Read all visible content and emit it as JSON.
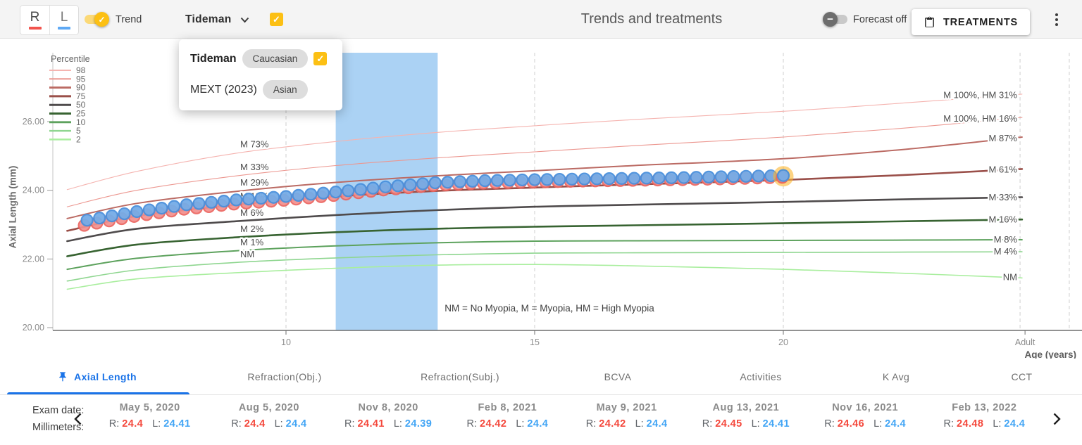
{
  "header": {
    "eye_toggle": {
      "right_label": "R",
      "left_label": "L"
    },
    "trend_toggle": {
      "label": "Trend",
      "on": true
    },
    "model_dropdown": {
      "label": "Tideman",
      "checkbox_checked": true
    },
    "title": "Trends and treatments",
    "forecast_toggle": {
      "label": "Forecast off",
      "on": false
    },
    "treatments_button_label": "TREATMENTS"
  },
  "icons": {
    "treatments_button": "clipboard-icon",
    "menu": "kebab-icon",
    "model_dropdown": "chevron-down-icon",
    "trend_thumb": "check-icon",
    "forecast_thumb": "minus-icon",
    "active_tab": "pin-icon",
    "exam_prev": "chevron-left-icon",
    "exam_next": "chevron-right-icon"
  },
  "colors": {
    "accent_yellow": "#fcc014",
    "right_eye_red": "#f4483c",
    "left_eye_blue": "#42a5f5",
    "active_tab_blue": "#1a73e8",
    "treatment_band_blue": "#abd2f4",
    "highlight_halo_orange": "#fcb52e"
  },
  "model_popover": {
    "items": [
      {
        "name": "Tideman",
        "chip": "Caucasian",
        "checked": true
      },
      {
        "name": "MEXT (2023)",
        "chip": "Asian",
        "checked": false
      }
    ]
  },
  "chart_data": {
    "type": "line",
    "ylabel": "Axial Length (mm)",
    "xlabel": "Age (years)",
    "ylim": [
      20,
      27
    ],
    "xlim_age": [
      5.5,
      26
    ],
    "note": "NM = No Myopia, M = Myopia, HM = High Myopia",
    "y_ticks": [
      {
        "label": "26.00",
        "value": 26
      },
      {
        "label": "24.00",
        "value": 24
      },
      {
        "label": "22.00",
        "value": 22
      },
      {
        "label": "20.00",
        "value": 20
      }
    ],
    "x_ticks": [
      {
        "label": "10",
        "age": 10
      },
      {
        "label": "15",
        "age": 15
      },
      {
        "label": "20",
        "age": 20
      },
      {
        "label": "Adult",
        "age": 24.86
      }
    ],
    "legend_title": "Percentile",
    "treatment_band": {
      "age_start": 11,
      "age_end": 13.05,
      "color": "#abd2f4"
    },
    "percentile_curves": [
      {
        "percentile": "98",
        "color": "#f5b4b0",
        "width": 1.1,
        "left_label": "M 73%",
        "right_label": "M 100%, HM 31%",
        "points": [
          [
            5.6,
            24.02
          ],
          [
            7,
            24.55
          ],
          [
            9,
            25.08
          ],
          [
            11,
            25.42
          ],
          [
            13,
            25.68
          ],
          [
            15,
            25.88
          ],
          [
            17,
            26.06
          ],
          [
            20,
            26.3
          ],
          [
            22.5,
            26.55
          ],
          [
            24.8,
            26.8
          ]
        ]
      },
      {
        "percentile": "95",
        "color": "#ec9790",
        "width": 1.1,
        "left_label": "M 33%",
        "right_label": "M 100%, HM 16%",
        "points": [
          [
            5.6,
            23.52
          ],
          [
            7,
            24.0
          ],
          [
            9,
            24.42
          ],
          [
            11,
            24.72
          ],
          [
            13,
            24.94
          ],
          [
            15,
            25.12
          ],
          [
            17,
            25.3
          ],
          [
            20,
            25.55
          ],
          [
            22.5,
            25.82
          ],
          [
            24.8,
            26.12
          ]
        ]
      },
      {
        "percentile": "90",
        "color": "#bb6a63",
        "width": 2,
        "left_label": "M 29%",
        "right_label": "M 87%",
        "points": [
          [
            5.6,
            23.18
          ],
          [
            7,
            23.62
          ],
          [
            9,
            23.97
          ],
          [
            11,
            24.23
          ],
          [
            13,
            24.42
          ],
          [
            15,
            24.57
          ],
          [
            17,
            24.72
          ],
          [
            20,
            24.92
          ],
          [
            22.5,
            25.2
          ],
          [
            24.8,
            25.55
          ]
        ]
      },
      {
        "percentile": "75",
        "color": "#9a4f49",
        "width": 2.6,
        "left_label": "M 12%",
        "right_label": "M 61%",
        "points": [
          [
            5.6,
            22.82
          ],
          [
            7,
            23.25
          ],
          [
            9,
            23.58
          ],
          [
            11,
            23.82
          ],
          [
            13,
            23.98
          ],
          [
            15,
            24.08
          ],
          [
            17,
            24.17
          ],
          [
            20,
            24.3
          ],
          [
            22.5,
            24.45
          ],
          [
            24.8,
            24.62
          ]
        ]
      },
      {
        "percentile": "50",
        "color": "#4f4b4c",
        "width": 2.6,
        "left_label": "M 6%",
        "right_label": "M 33%",
        "points": [
          [
            5.6,
            22.52
          ],
          [
            7,
            22.88
          ],
          [
            9,
            23.1
          ],
          [
            11,
            23.28
          ],
          [
            13,
            23.42
          ],
          [
            15,
            23.52
          ],
          [
            17,
            23.58
          ],
          [
            20,
            23.66
          ],
          [
            22.5,
            23.74
          ],
          [
            24.8,
            23.8
          ]
        ]
      },
      {
        "percentile": "25",
        "color": "#376331",
        "width": 2.6,
        "left_label": "M 2%",
        "right_label": "M 16%",
        "points": [
          [
            5.6,
            22.08
          ],
          [
            7,
            22.42
          ],
          [
            9,
            22.63
          ],
          [
            11,
            22.78
          ],
          [
            13,
            22.88
          ],
          [
            15,
            22.94
          ],
          [
            17,
            22.98
          ],
          [
            20,
            23.04
          ],
          [
            22.5,
            23.1
          ],
          [
            24.8,
            23.15
          ]
        ]
      },
      {
        "percentile": "10",
        "color": "#5da25d",
        "width": 2,
        "left_label": "M 1%",
        "right_label": "M 8%",
        "points": [
          [
            5.6,
            21.7
          ],
          [
            7,
            22.02
          ],
          [
            9,
            22.24
          ],
          [
            11,
            22.38
          ],
          [
            13,
            22.47
          ],
          [
            15,
            22.52
          ],
          [
            17,
            22.53
          ],
          [
            20,
            22.54
          ],
          [
            22.5,
            22.55
          ],
          [
            24.8,
            22.56
          ]
        ]
      },
      {
        "percentile": "5",
        "color": "#8fd690",
        "width": 1.6,
        "left_label": "NM",
        "right_label": "M 4%",
        "points": [
          [
            5.6,
            21.36
          ],
          [
            7,
            21.68
          ],
          [
            9,
            21.9
          ],
          [
            11,
            22.03
          ],
          [
            13,
            22.12
          ],
          [
            15,
            22.17
          ],
          [
            17,
            22.18
          ],
          [
            20,
            22.19
          ],
          [
            22.5,
            22.2
          ],
          [
            24.8,
            22.21
          ]
        ]
      },
      {
        "percentile": "2",
        "color": "#a9ee9e",
        "width": 1.6,
        "left_label": null,
        "right_label": "NM",
        "points": [
          [
            5.6,
            21.12
          ],
          [
            7,
            21.42
          ],
          [
            9,
            21.6
          ],
          [
            11,
            21.73
          ],
          [
            13,
            21.82
          ],
          [
            15,
            21.84
          ],
          [
            17,
            21.8
          ],
          [
            20,
            21.7
          ],
          [
            22.5,
            21.58
          ],
          [
            24.8,
            21.45
          ]
        ]
      }
    ],
    "patient_series": {
      "age_start": 6,
      "age_end": 20,
      "step": 0.25,
      "eyes": [
        {
          "name": "R",
          "fill": "#f2908e",
          "stroke": "#ec6660"
        },
        {
          "name": "L",
          "fill": "#75ace7",
          "stroke": "#4a90dc"
        }
      ],
      "anchors_L": [
        [
          6,
          23.13
        ],
        [
          7,
          23.38
        ],
        [
          8,
          23.58
        ],
        [
          9,
          23.72
        ],
        [
          10,
          23.82
        ],
        [
          11,
          23.95
        ],
        [
          12,
          24.1
        ],
        [
          13,
          24.22
        ],
        [
          14,
          24.28
        ],
        [
          15,
          24.31
        ],
        [
          16,
          24.33
        ],
        [
          17,
          24.35
        ],
        [
          18,
          24.37
        ],
        [
          19,
          24.4
        ],
        [
          20,
          24.43
        ]
      ],
      "anchors_R": [
        [
          6,
          23.01
        ],
        [
          7,
          23.27
        ],
        [
          8,
          23.48
        ],
        [
          9,
          23.63
        ],
        [
          10,
          23.74
        ],
        [
          11,
          23.88
        ],
        [
          12,
          24.04
        ],
        [
          13,
          24.17
        ],
        [
          14,
          24.24
        ],
        [
          15,
          24.27
        ],
        [
          16,
          24.3
        ],
        [
          17,
          24.32
        ],
        [
          18,
          24.34
        ],
        [
          19,
          24.37
        ],
        [
          20,
          24.41
        ]
      ],
      "highlight_last_point": true
    }
  },
  "tabs": [
    {
      "label": "Axial Length",
      "active": true
    },
    {
      "label": "Refraction(Obj.)",
      "active": false
    },
    {
      "label": "Refraction(Subj.)",
      "active": false
    },
    {
      "label": "BCVA",
      "active": false
    },
    {
      "label": "Activities",
      "active": false
    },
    {
      "label": "K Avg",
      "active": false
    },
    {
      "label": "CCT",
      "active": false
    }
  ],
  "exam_table": {
    "row_label_date": "Exam date:",
    "row_label_unit": "Millimeters:",
    "eye_labels": {
      "right": "R:",
      "left": "L:"
    },
    "columns": [
      {
        "date": "May 5, 2020",
        "R": "24.4",
        "L": "24.41"
      },
      {
        "date": "Aug 5, 2020",
        "R": "24.4",
        "L": "24.4"
      },
      {
        "date": "Nov 8, 2020",
        "R": "24.41",
        "L": "24.39"
      },
      {
        "date": "Feb 8, 2021",
        "R": "24.42",
        "L": "24.4"
      },
      {
        "date": "May 9, 2021",
        "R": "24.42",
        "L": "24.4"
      },
      {
        "date": "Aug 13, 2021",
        "R": "24.45",
        "L": "24.41"
      },
      {
        "date": "Nov 16, 2021",
        "R": "24.46",
        "L": "24.4"
      },
      {
        "date": "Feb 13, 2022",
        "R": "24.48",
        "L": "24.4"
      }
    ]
  }
}
